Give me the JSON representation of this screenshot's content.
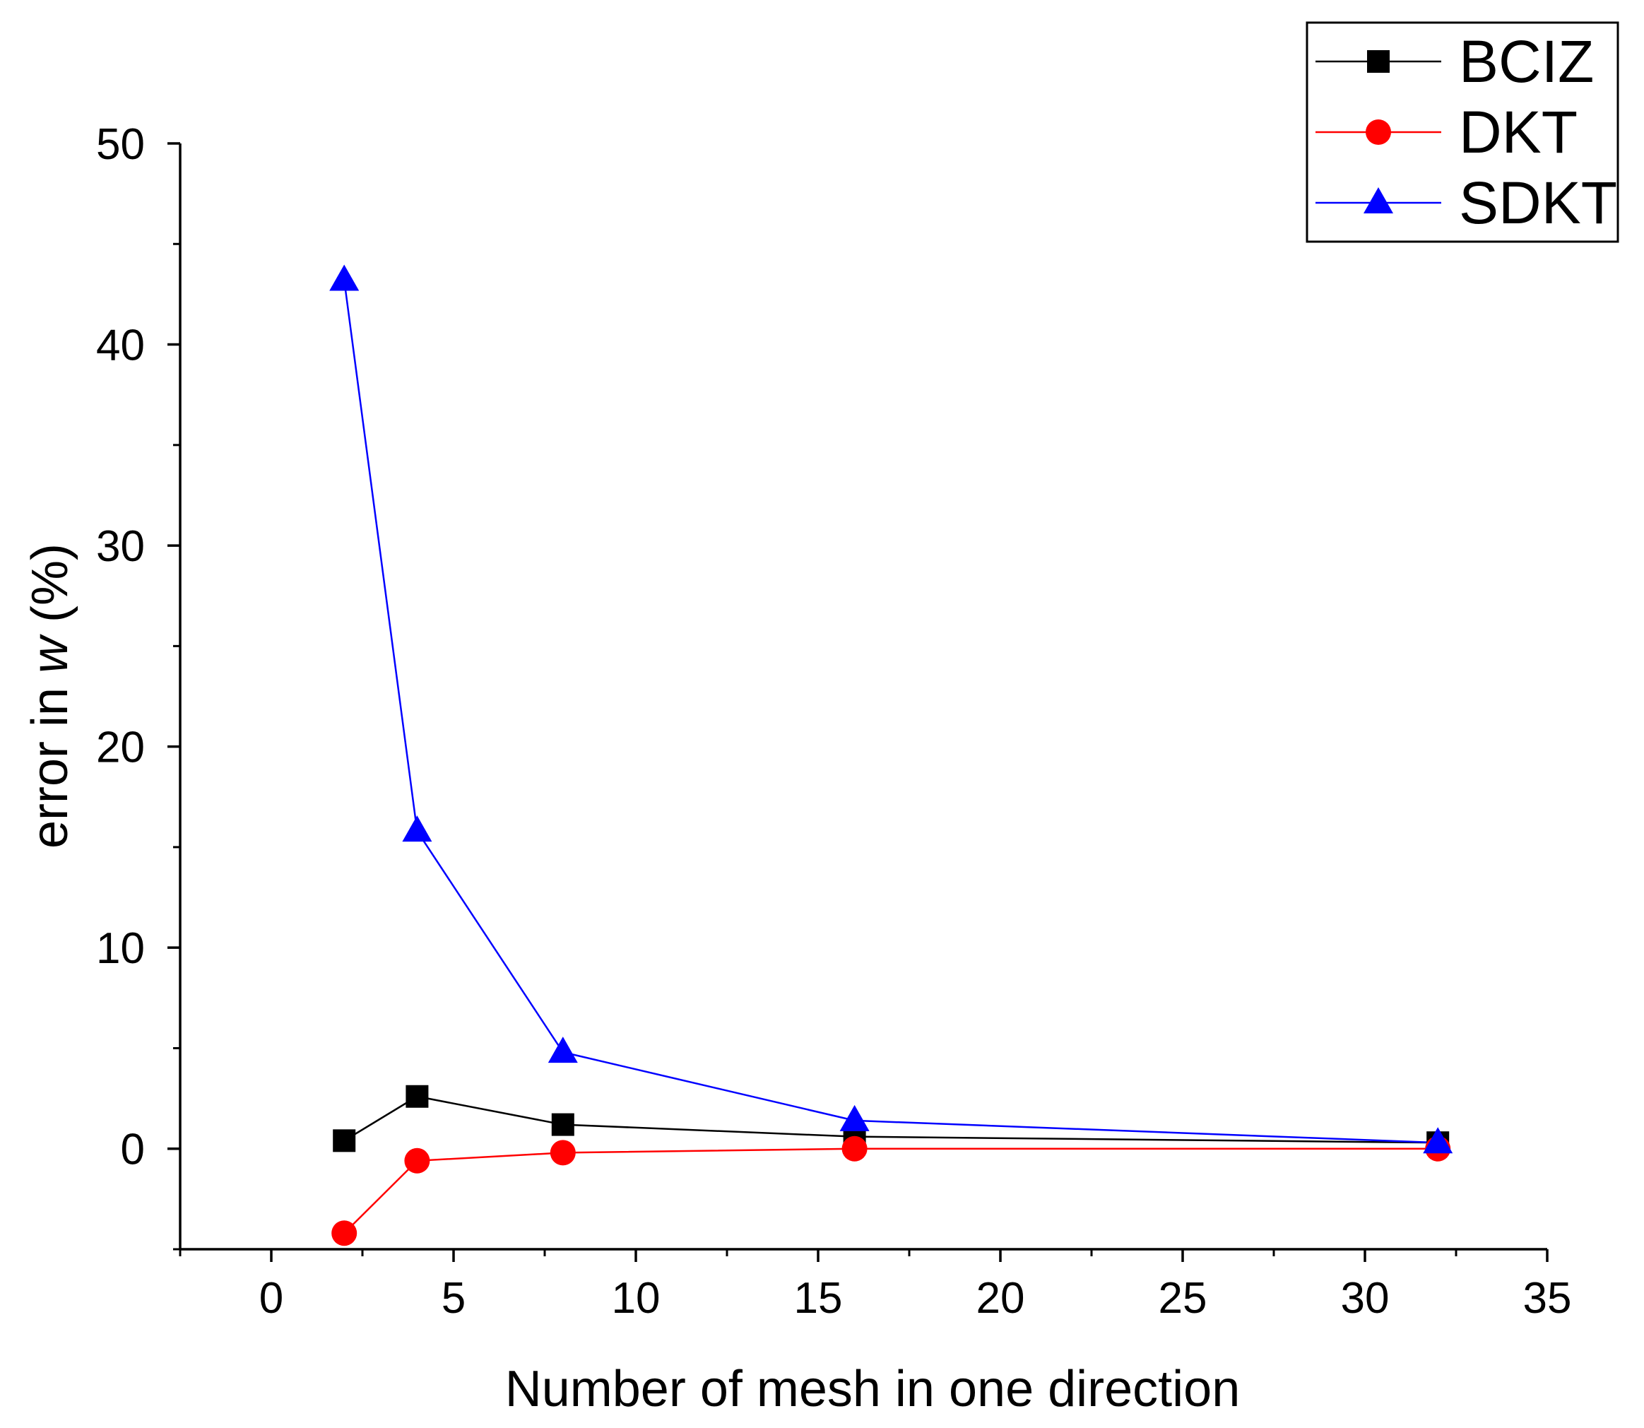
{
  "chart_data": {
    "type": "line",
    "title": "",
    "xlabel": "Number of mesh in one direction",
    "ylabel_prefix": "error in ",
    "ylabel_var": "w",
    "ylabel_suffix": " (%)",
    "xlim": [
      -2.5,
      35
    ],
    "ylim": [
      -5,
      50
    ],
    "xticks": [
      0,
      5,
      10,
      15,
      20,
      25,
      30,
      35
    ],
    "yticks": [
      0,
      10,
      20,
      30,
      40,
      50
    ],
    "x": [
      2,
      4,
      8,
      16,
      32
    ],
    "series": [
      {
        "name": "BCIZ",
        "color": "#000000",
        "marker": "square",
        "values": [
          0.4,
          2.6,
          1.2,
          0.6,
          0.3
        ]
      },
      {
        "name": "DKT",
        "color": "#ff0000",
        "marker": "circle",
        "values": [
          -4.2,
          -0.6,
          -0.2,
          0.0,
          0.0
        ]
      },
      {
        "name": "SDKT",
        "color": "#0000ff",
        "marker": "triangle",
        "values": [
          43.2,
          15.8,
          4.8,
          1.4,
          0.3
        ]
      }
    ],
    "legend_position": "top-right",
    "grid": false
  }
}
